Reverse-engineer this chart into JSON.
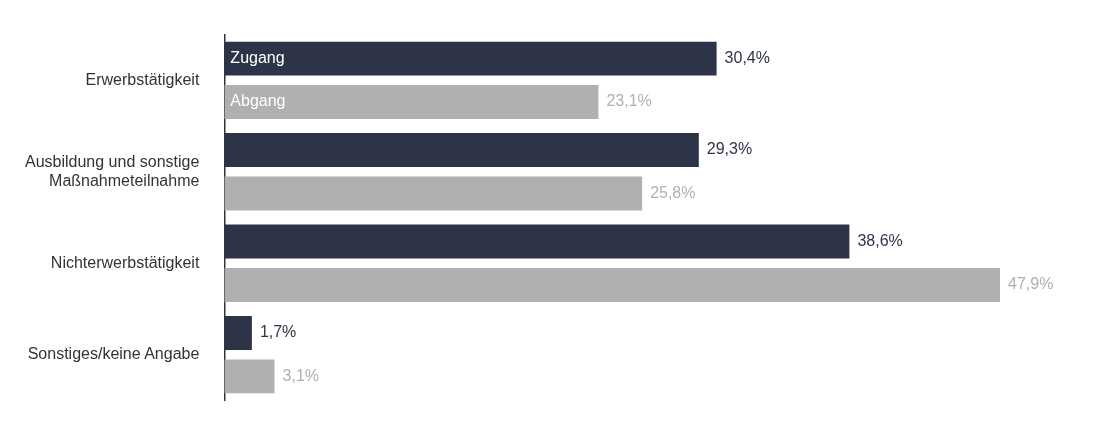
{
  "chart_data": {
    "type": "bar",
    "orientation": "horizontal",
    "categories": [
      "Erwerbstätigkeit",
      "Ausbildung und sonstige Maßnahmeteilnahme",
      "Nichterwerbstätigkeit",
      "Sonstiges/keine Angabe"
    ],
    "series": [
      {
        "name": "Zugang",
        "color": "#2e3447",
        "values": [
          30.4,
          29.3,
          38.6,
          1.7
        ],
        "value_labels": [
          "30,4%",
          "29,3%",
          "38,6%",
          "1,7%"
        ]
      },
      {
        "name": "Abgang",
        "color": "#b0b0b0",
        "values": [
          23.1,
          25.8,
          47.9,
          3.1
        ],
        "value_labels": [
          "23,1%",
          "25,8%",
          "47,9%",
          "3,1%"
        ]
      }
    ],
    "legend": false
  }
}
